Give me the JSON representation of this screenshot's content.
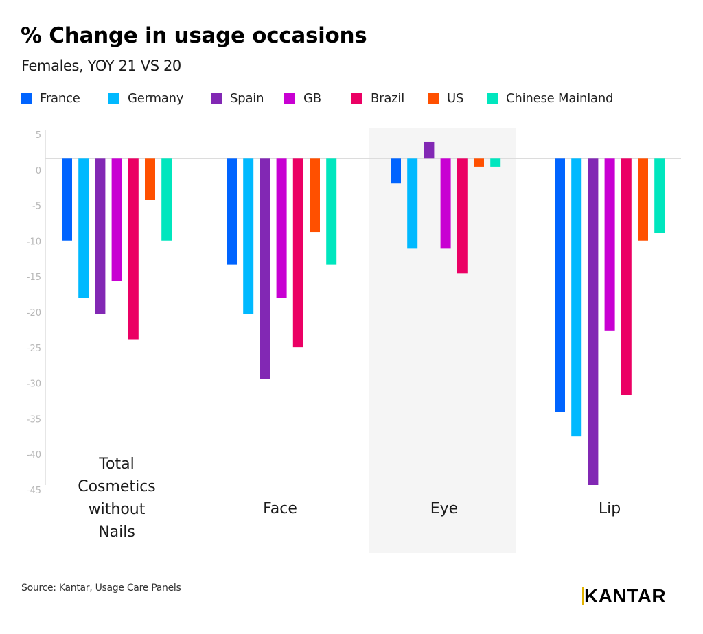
{
  "header": {
    "title": "% Change in usage occasions",
    "subtitle": "Females, YOY 21 VS 20"
  },
  "footer": {
    "source": "Source: Kantar, Usage Care Panels",
    "logo_text": "KANTAR",
    "logo_accent_color": "#E3B400"
  },
  "chart_data": {
    "type": "bar",
    "title": "% Change in usage occasions",
    "subtitle": "Females, YOY 21 VS 20",
    "xlabel": "",
    "ylabel": "",
    "ylim": [
      -45,
      4
    ],
    "y_ticks": [
      5,
      0,
      -5,
      -10,
      -15,
      -20,
      -25,
      -30,
      -35,
      -40,
      -45
    ],
    "y_tick_labels": [
      "5",
      "0",
      "-5",
      "-10",
      "-15",
      "-20",
      "-25",
      "-30",
      "-35",
      "-40",
      "-45"
    ],
    "grid": false,
    "legend_position": "top",
    "highlighted_category": "Eye",
    "categories": [
      "Total Cosmetics without Nails",
      "Face",
      "Eye",
      "Lip"
    ],
    "category_label_lines": [
      [
        "Total",
        "Cosmetics",
        "without",
        "Nails"
      ],
      [
        "Face"
      ],
      [
        "Eye"
      ],
      [
        "Lip"
      ]
    ],
    "series": [
      {
        "name": "France",
        "color": "#0064FF",
        "values": [
          -11.3,
          -14.6,
          -3.4,
          -34.9
        ]
      },
      {
        "name": "Germany",
        "color": "#00B9FF",
        "values": [
          -19.2,
          -21.4,
          -12.4,
          -38.3
        ]
      },
      {
        "name": "Spain",
        "color": "#8228B4",
        "values": [
          -21.4,
          -30.4,
          2.3,
          -45.0
        ]
      },
      {
        "name": "GB",
        "color": "#C800D2",
        "values": [
          -16.9,
          -19.2,
          -12.4,
          -23.7
        ]
      },
      {
        "name": "Brazil",
        "color": "#EB0064",
        "values": [
          -24.9,
          -26.0,
          -15.8,
          -32.6
        ]
      },
      {
        "name": "US",
        "color": "#FF5000",
        "values": [
          -5.7,
          -10.1,
          -1.1,
          -11.3
        ]
      },
      {
        "name": "Chinese Mainland",
        "color": "#00E6BE",
        "values": [
          -11.3,
          -14.6,
          -1.1,
          -10.2
        ]
      }
    ]
  }
}
